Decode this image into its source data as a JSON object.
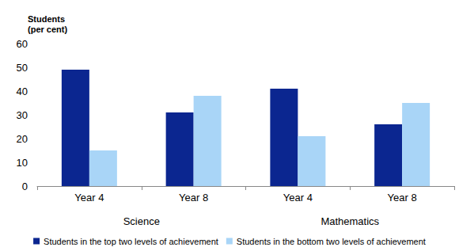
{
  "chart_data": {
    "type": "bar",
    "ylabel": "Students\n(per cent)",
    "groups": [
      {
        "label": "Science",
        "categories": [
          "Year 4",
          "Year 8"
        ]
      },
      {
        "label": "Mathematics",
        "categories": [
          "Year 4",
          "Year 8"
        ]
      }
    ],
    "series": [
      {
        "name": "Students in the top two levels of achievement",
        "color": "#0b2690",
        "values": [
          49,
          31,
          41,
          26
        ]
      },
      {
        "name": "Students in the bottom two levels of achievement",
        "color": "#a9d5f7",
        "values": [
          15,
          38,
          21,
          35
        ]
      }
    ],
    "ylim": [
      0,
      60
    ],
    "yticks": [
      0,
      10,
      20,
      30,
      40,
      50,
      60
    ],
    "grid": false,
    "legend": "bottom"
  }
}
